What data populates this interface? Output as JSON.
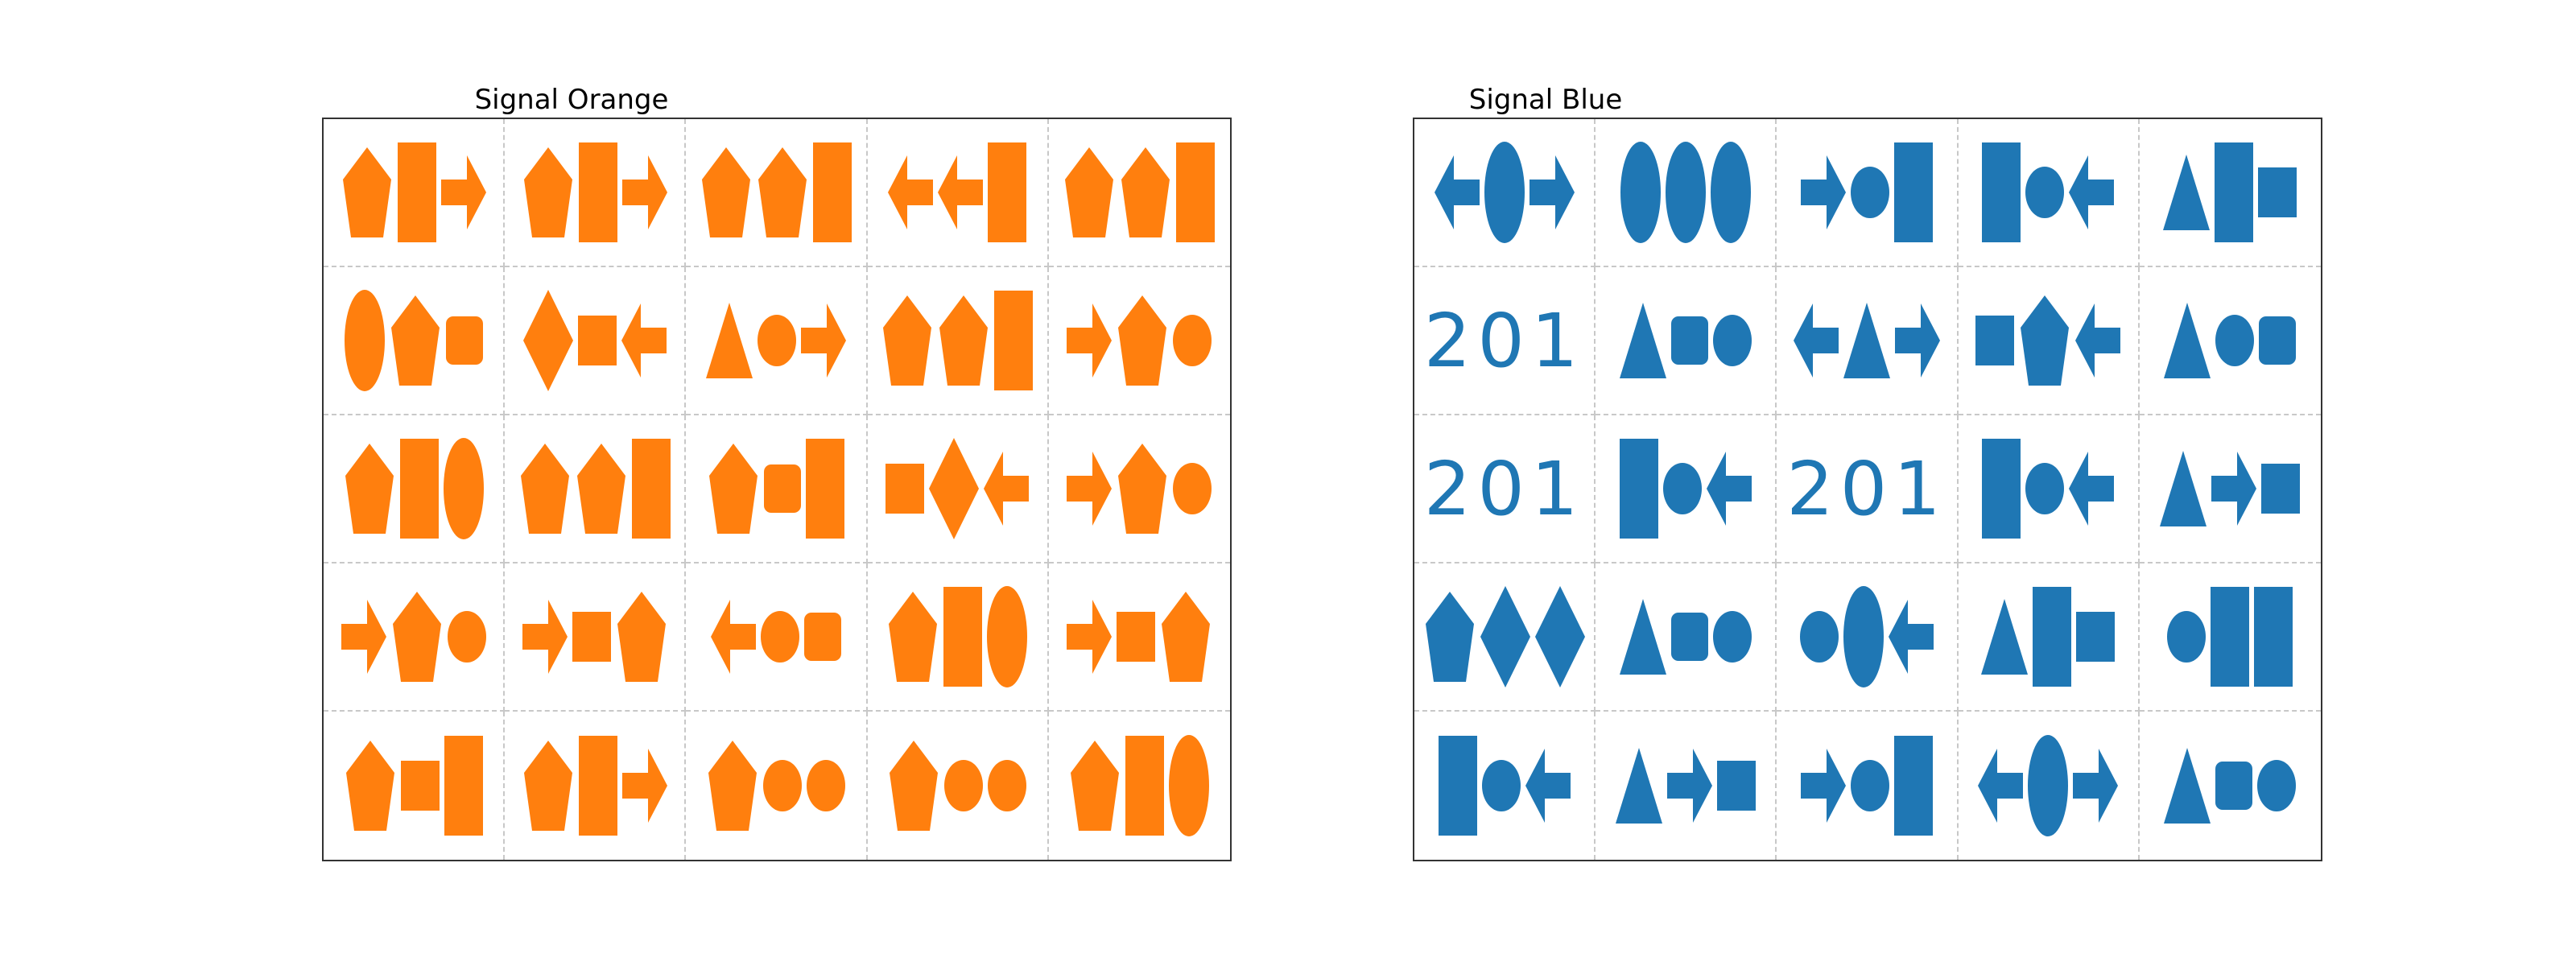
{
  "panels": [
    {
      "title": "Signal Orange",
      "color": "#ff7f0e",
      "cells": [
        [
          {
            "shapes": [
              "pentagon",
              "rect-tall",
              "arrow-right"
            ]
          },
          {
            "shapes": [
              "pentagon",
              "rect-tall",
              "arrow-right"
            ]
          },
          {
            "shapes": [
              "pentagon",
              "pentagon",
              "rect-tall"
            ]
          },
          {
            "shapes": [
              "arrow-left",
              "arrow-left",
              "rect-tall"
            ]
          },
          {
            "shapes": [
              "pentagon",
              "pentagon",
              "rect-tall"
            ]
          }
        ],
        [
          {
            "shapes": [
              "ellipse",
              "pentagon",
              "rounded-rect"
            ]
          },
          {
            "shapes": [
              "diamond",
              "square",
              "arrow-left"
            ]
          },
          {
            "shapes": [
              "triangle",
              "circle",
              "arrow-right"
            ]
          },
          {
            "shapes": [
              "pentagon",
              "pentagon",
              "rect-tall"
            ]
          },
          {
            "shapes": [
              "arrow-right",
              "pentagon",
              "circle"
            ]
          }
        ],
        [
          {
            "shapes": [
              "pentagon",
              "rect-tall",
              "ellipse"
            ]
          },
          {
            "shapes": [
              "pentagon",
              "pentagon",
              "rect-tall"
            ]
          },
          {
            "shapes": [
              "pentagon",
              "rounded-rect",
              "rect-tall"
            ]
          },
          {
            "shapes": [
              "square",
              "diamond",
              "arrow-left"
            ]
          },
          {
            "shapes": [
              "arrow-right",
              "pentagon",
              "circle"
            ]
          }
        ],
        [
          {
            "shapes": [
              "arrow-right",
              "pentagon",
              "circle"
            ]
          },
          {
            "shapes": [
              "arrow-right",
              "square",
              "pentagon"
            ]
          },
          {
            "shapes": [
              "arrow-left",
              "circle",
              "rounded-rect"
            ]
          },
          {
            "shapes": [
              "pentagon",
              "rect-tall",
              "ellipse"
            ]
          },
          {
            "shapes": [
              "arrow-right",
              "square",
              "pentagon"
            ]
          }
        ],
        [
          {
            "shapes": [
              "pentagon",
              "square",
              "rect-tall"
            ]
          },
          {
            "shapes": [
              "pentagon",
              "rect-tall",
              "arrow-right"
            ]
          },
          {
            "shapes": [
              "pentagon",
              "circle",
              "circle"
            ]
          },
          {
            "shapes": [
              "pentagon",
              "circle",
              "circle"
            ]
          },
          {
            "shapes": [
              "pentagon",
              "rect-tall",
              "ellipse"
            ]
          }
        ]
      ]
    },
    {
      "title": "Signal Blue",
      "color": "#1f77b4",
      "cells": [
        [
          {
            "shapes": [
              "arrow-left",
              "ellipse",
              "arrow-right"
            ]
          },
          {
            "shapes": [
              "ellipse",
              "ellipse",
              "ellipse"
            ]
          },
          {
            "shapes": [
              "arrow-right",
              "circle",
              "rect-tall"
            ]
          },
          {
            "shapes": [
              "rect-tall",
              "circle",
              "arrow-left"
            ]
          },
          {
            "shapes": [
              "triangle",
              "rect-tall",
              "square"
            ]
          }
        ],
        [
          {
            "text": "201"
          },
          {
            "shapes": [
              "triangle",
              "rounded-rect",
              "circle"
            ]
          },
          {
            "shapes": [
              "arrow-left",
              "triangle",
              "arrow-right"
            ]
          },
          {
            "shapes": [
              "square",
              "pentagon",
              "arrow-left"
            ]
          },
          {
            "shapes": [
              "triangle",
              "circle",
              "rounded-rect"
            ]
          }
        ],
        [
          {
            "text": "201"
          },
          {
            "shapes": [
              "rect-tall",
              "circle",
              "arrow-left"
            ]
          },
          {
            "text": "201"
          },
          {
            "shapes": [
              "rect-tall",
              "circle",
              "arrow-left"
            ]
          },
          {
            "shapes": [
              "triangle",
              "arrow-right",
              "square"
            ]
          }
        ],
        [
          {
            "shapes": [
              "pentagon",
              "diamond",
              "diamond"
            ]
          },
          {
            "shapes": [
              "triangle",
              "rounded-rect",
              "circle"
            ]
          },
          {
            "shapes": [
              "circle",
              "ellipse",
              "arrow-left"
            ]
          },
          {
            "shapes": [
              "triangle",
              "rect-tall",
              "square"
            ]
          },
          {
            "shapes": [
              "circle",
              "rect-tall",
              "rect-tall"
            ]
          }
        ],
        [
          {
            "shapes": [
              "rect-tall",
              "circle",
              "arrow-left"
            ]
          },
          {
            "shapes": [
              "triangle",
              "arrow-right",
              "square"
            ]
          },
          {
            "shapes": [
              "arrow-right",
              "circle",
              "rect-tall"
            ]
          },
          {
            "shapes": [
              "arrow-left",
              "ellipse",
              "arrow-right"
            ]
          },
          {
            "shapes": [
              "triangle",
              "rounded-rect",
              "circle"
            ]
          }
        ]
      ]
    }
  ]
}
